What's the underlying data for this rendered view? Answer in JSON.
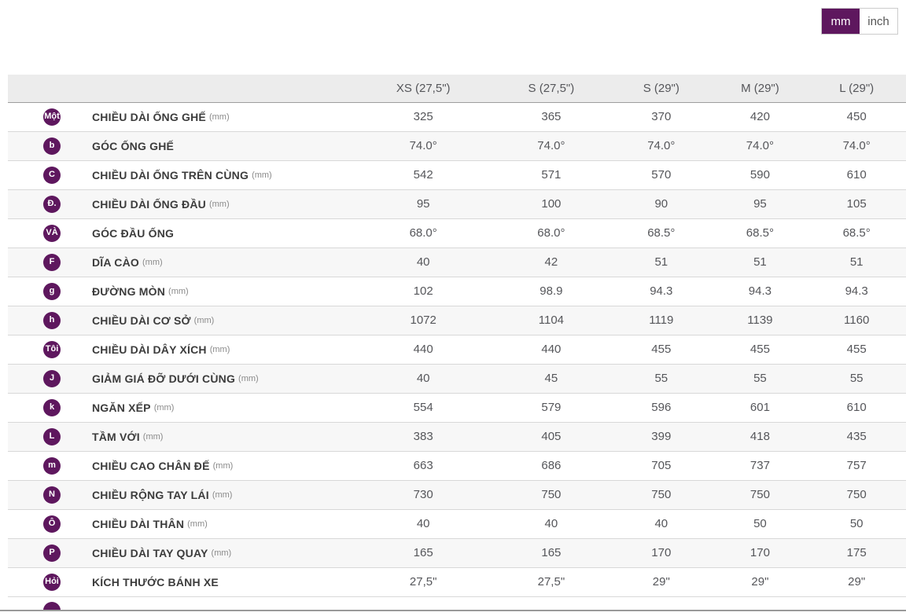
{
  "unit_toggle": {
    "mm_label": "mm",
    "inch_label": "inch",
    "selected": "mm"
  },
  "colors": {
    "accent_purple": "#5e175e",
    "header_bg": "#ececec",
    "stripe_bg": "#f7f7f7",
    "row_border": "#d8d8d8",
    "text_gray": "#55565a"
  },
  "table": {
    "columns": [
      "XS (27,5\")",
      "S (27,5\")",
      "S (29\")",
      "M (29\")",
      "L (29\")"
    ],
    "rows": [
      {
        "badge": "Một",
        "label": "CHIỀU DÀI ỐNG GHẾ",
        "unit": "(mm)",
        "values": [
          "325",
          "365",
          "370",
          "420",
          "450"
        ]
      },
      {
        "badge": "b",
        "label": "GÓC ỐNG GHẾ",
        "unit": "",
        "values": [
          "74.0°",
          "74.0°",
          "74.0°",
          "74.0°",
          "74.0°"
        ]
      },
      {
        "badge": "C",
        "label": "CHIỀU DÀI ỐNG TRÊN CÙNG",
        "unit": "(mm)",
        "values": [
          "542",
          "571",
          "570",
          "590",
          "610"
        ]
      },
      {
        "badge": "Đ.",
        "label": "CHIỀU DÀI ỐNG ĐẦU",
        "unit": "(mm)",
        "values": [
          "95",
          "100",
          "90",
          "95",
          "105"
        ]
      },
      {
        "badge": "VÀ",
        "label": "GÓC ĐẦU ỐNG",
        "unit": "",
        "values": [
          "68.0°",
          "68.0°",
          "68.5°",
          "68.5°",
          "68.5°"
        ]
      },
      {
        "badge": "F",
        "label": "DĨA CÀO",
        "unit": "(mm)",
        "values": [
          "40",
          "42",
          "51",
          "51",
          "51"
        ]
      },
      {
        "badge": "g",
        "label": "ĐƯỜNG MÒN",
        "unit": "(mm)",
        "values": [
          "102",
          "98.9",
          "94.3",
          "94.3",
          "94.3"
        ]
      },
      {
        "badge": "h",
        "label": "CHIỀU DÀI CƠ SỞ",
        "unit": "(mm)",
        "values": [
          "1072",
          "1104",
          "1119",
          "1139",
          "1160"
        ]
      },
      {
        "badge": "Tôi",
        "label": "CHIỀU DÀI DÂY XÍCH",
        "unit": "(mm)",
        "values": [
          "440",
          "440",
          "455",
          "455",
          "455"
        ]
      },
      {
        "badge": "J",
        "label": "GIẢM GIÁ ĐỠ DƯỚI CÙNG",
        "unit": "(mm)",
        "values": [
          "40",
          "45",
          "55",
          "55",
          "55"
        ]
      },
      {
        "badge": "k",
        "label": "NGĂN XẾP",
        "unit": "(mm)",
        "values": [
          "554",
          "579",
          "596",
          "601",
          "610"
        ]
      },
      {
        "badge": "L",
        "label": "TẦM VỚI",
        "unit": "(mm)",
        "values": [
          "383",
          "405",
          "399",
          "418",
          "435"
        ]
      },
      {
        "badge": "m",
        "label": "CHIỀU CAO CHÂN ĐẾ",
        "unit": "(mm)",
        "values": [
          "663",
          "686",
          "705",
          "737",
          "757"
        ]
      },
      {
        "badge": "N",
        "label": "CHIỀU RỘNG TAY LÁI",
        "unit": "(mm)",
        "values": [
          "730",
          "750",
          "750",
          "750",
          "750"
        ]
      },
      {
        "badge": "Ô",
        "label": "CHIỀU DÀI THÂN",
        "unit": "(mm)",
        "values": [
          "40",
          "40",
          "40",
          "50",
          "50"
        ]
      },
      {
        "badge": "P",
        "label": "CHIỀU DÀI TAY QUAY",
        "unit": "(mm)",
        "values": [
          "165",
          "165",
          "170",
          "170",
          "175"
        ]
      },
      {
        "badge": "Hỏi",
        "label": "KÍCH THƯỚC BÁNH XE",
        "unit": "",
        "values": [
          "27,5\"",
          "27,5\"",
          "29\"",
          "29\"",
          "29\""
        ]
      }
    ]
  }
}
